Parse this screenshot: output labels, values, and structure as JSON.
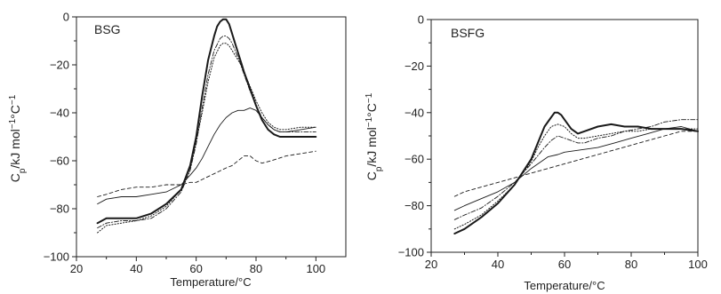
{
  "chart_data": [
    {
      "type": "line",
      "title": "BSG",
      "xlabel": "Temperature/°C",
      "ylabel_main": "C",
      "ylabel_sub": "p",
      "ylabel_rest": "/kJ mol",
      "ylabel_sup1": "−1",
      "ylabel_mid": "°C",
      "ylabel_sup2": "−1",
      "xlim": [
        20,
        110
      ],
      "ylim": [
        -100,
        0
      ],
      "xticks": [
        20,
        40,
        60,
        80,
        100
      ],
      "yticks": [
        0,
        -20,
        -40,
        -60,
        -80,
        -100
      ],
      "xtick_labels": [
        "20",
        "40",
        "60",
        "80",
        "100"
      ],
      "ytick_labels": [
        "0",
        "−20",
        "−40",
        "−60",
        "−80",
        "−100"
      ],
      "grid": false,
      "series": [
        {
          "style": "bold",
          "x": [
            27,
            30,
            35,
            40,
            45,
            50,
            55,
            58,
            60,
            62,
            64,
            66,
            67,
            68,
            69,
            70,
            71,
            72,
            73,
            74,
            75,
            76,
            78,
            80,
            82,
            84,
            86,
            88,
            90,
            95,
            100
          ],
          "y": [
            -86,
            -84,
            -84,
            -84,
            -82,
            -78,
            -72,
            -62,
            -50,
            -33,
            -18,
            -8,
            -4,
            -2,
            -1,
            -1,
            -3,
            -7,
            -11,
            -15,
            -19,
            -23,
            -30,
            -37,
            -43,
            -47,
            -49,
            -50,
            -50,
            -50,
            -50
          ]
        },
        {
          "style": "dotted",
          "x": [
            27,
            30,
            35,
            40,
            45,
            50,
            55,
            58,
            60,
            62,
            64,
            66,
            68,
            69,
            70,
            71,
            72,
            73,
            74,
            75,
            76,
            78,
            80,
            82,
            84,
            86,
            88,
            90,
            95,
            100
          ],
          "y": [
            -90,
            -87,
            -86,
            -85,
            -83,
            -79,
            -72,
            -63,
            -52,
            -40,
            -27,
            -17,
            -12,
            -11,
            -11,
            -12,
            -14,
            -16,
            -18,
            -20,
            -23,
            -29,
            -35,
            -40,
            -44,
            -46,
            -47,
            -47,
            -46,
            -46
          ]
        },
        {
          "style": "thin",
          "x": [
            27,
            30,
            35,
            40,
            45,
            50,
            55,
            58,
            60,
            62,
            64,
            66,
            68,
            70,
            72,
            74,
            76,
            78,
            80,
            82,
            84,
            86,
            88,
            90,
            95,
            100
          ],
          "y": [
            -78,
            -76,
            -75,
            -75,
            -74,
            -73,
            -70,
            -66,
            -63,
            -59,
            -54,
            -49,
            -45,
            -42,
            -40,
            -39,
            -39,
            -38,
            -39,
            -42,
            -45,
            -47,
            -48,
            -48,
            -47,
            -46
          ]
        },
        {
          "style": "dashed",
          "x": [
            27,
            30,
            35,
            40,
            45,
            50,
            55,
            58,
            60,
            65,
            70,
            72,
            74,
            76,
            77,
            78,
            79,
            80,
            82,
            85,
            90,
            95,
            100
          ],
          "y": [
            -75,
            -74,
            -72,
            -71,
            -71,
            -70,
            -70,
            -69,
            -69,
            -66,
            -63,
            -62,
            -60,
            -58,
            -58,
            -58,
            -59,
            -60,
            -61,
            -60,
            -58,
            -57,
            -56
          ]
        },
        {
          "style": "dashdot",
          "x": [
            27,
            30,
            35,
            40,
            45,
            50,
            55,
            58,
            60,
            62,
            64,
            66,
            68,
            69,
            70,
            71,
            72,
            73,
            74,
            76,
            78,
            80,
            82,
            84,
            86,
            88,
            90,
            95,
            100
          ],
          "y": [
            -88,
            -86,
            -85,
            -85,
            -84,
            -80,
            -73,
            -64,
            -53,
            -38,
            -24,
            -14,
            -9,
            -8,
            -8,
            -9,
            -11,
            -14,
            -17,
            -24,
            -31,
            -37,
            -42,
            -45,
            -47,
            -48,
            -48,
            -48,
            -48
          ]
        }
      ]
    },
    {
      "type": "line",
      "title": "BSFG",
      "xlabel": "Temperature/°C",
      "ylabel_main": "C",
      "ylabel_sub": "p",
      "ylabel_rest": "/kJ mol",
      "ylabel_sup1": "−1",
      "ylabel_mid": "°C",
      "ylabel_sup2": "−1",
      "xlim": [
        20,
        100
      ],
      "ylim": [
        -100,
        0
      ],
      "xticks": [
        20,
        40,
        60,
        80,
        100
      ],
      "yticks": [
        0,
        -20,
        -40,
        -60,
        -80,
        -100
      ],
      "xtick_labels": [
        "20",
        "40",
        "60",
        "80",
        "100"
      ],
      "ytick_labels": [
        "0",
        "−20",
        "−40",
        "−60",
        "−80",
        "−100"
      ],
      "grid": false,
      "series": [
        {
          "style": "bold",
          "x": [
            27,
            30,
            35,
            40,
            45,
            50,
            52,
            54,
            56,
            57,
            58,
            59,
            60,
            62,
            64,
            66,
            70,
            74,
            78,
            82,
            86,
            90,
            95,
            100
          ],
          "y": [
            -92,
            -90,
            -85,
            -79,
            -71,
            -60,
            -53,
            -46,
            -42,
            -40,
            -40,
            -41,
            -43,
            -47,
            -49,
            -48,
            -46,
            -45,
            -46,
            -46,
            -47,
            -47,
            -47,
            -48
          ]
        },
        {
          "style": "dotted",
          "x": [
            27,
            30,
            35,
            40,
            45,
            50,
            52,
            54,
            56,
            58,
            60,
            62,
            64,
            66,
            70,
            74,
            78,
            82,
            86,
            90,
            95,
            100
          ],
          "y": [
            -90,
            -88,
            -84,
            -78,
            -71,
            -61,
            -55,
            -50,
            -46,
            -45,
            -46,
            -49,
            -51,
            -51,
            -50,
            -49,
            -48,
            -48,
            -47,
            -47,
            -47,
            -47
          ]
        },
        {
          "style": "thin",
          "x": [
            27,
            30,
            35,
            40,
            45,
            50,
            55,
            58,
            60,
            65,
            70,
            75,
            80,
            85,
            90,
            95,
            100
          ],
          "y": [
            -82,
            -80,
            -77,
            -74,
            -70,
            -64,
            -59,
            -58,
            -57,
            -56,
            -55,
            -53,
            -51,
            -49,
            -47,
            -46,
            -48
          ]
        },
        {
          "style": "dashed",
          "x": [
            27,
            30,
            35,
            40,
            45,
            50,
            55,
            60,
            65,
            70,
            75,
            80,
            85,
            90,
            95,
            100
          ],
          "y": [
            -76,
            -74,
            -72,
            -70,
            -68,
            -66,
            -64,
            -62,
            -60,
            -58,
            -56,
            -54,
            -52,
            -50,
            -48,
            -48
          ]
        },
        {
          "style": "dashdot",
          "x": [
            27,
            30,
            35,
            40,
            45,
            50,
            54,
            56,
            58,
            60,
            62,
            64,
            66,
            70,
            74,
            78,
            82,
            86,
            90,
            95,
            100
          ],
          "y": [
            -86,
            -84,
            -81,
            -76,
            -70,
            -62,
            -55,
            -52,
            -50,
            -51,
            -52,
            -53,
            -53,
            -51,
            -50,
            -48,
            -47,
            -46,
            -44,
            -43,
            -43
          ]
        }
      ]
    }
  ],
  "colors": {
    "ink": "#222222",
    "line": "#1a1a1a"
  }
}
